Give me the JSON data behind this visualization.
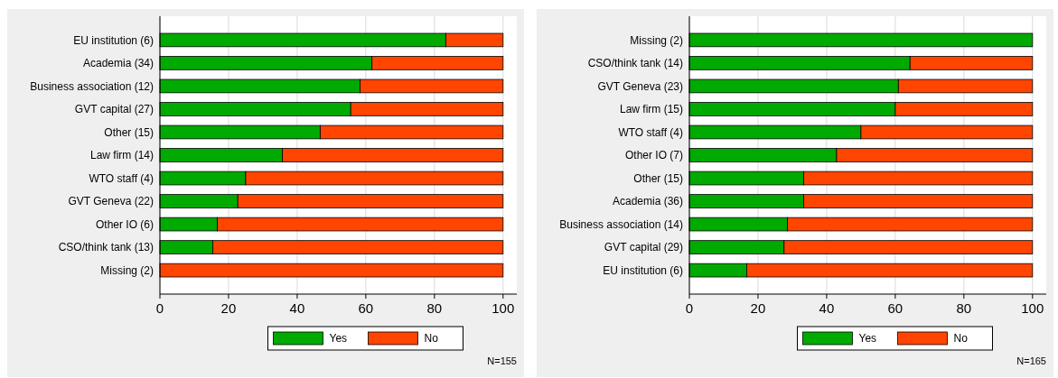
{
  "chart_data": [
    {
      "type": "bar",
      "orientation": "horizontal",
      "stacked": true,
      "categories": [
        "EU institution (6)",
        "Academia (34)",
        "Business  association (12)",
        "GVT capital (27)",
        "Other (15)",
        "Law firm (14)",
        "WTO staff (4)",
        "GVT Geneva (22)",
        "Other IO (6)",
        "CSO/think tank (13)",
        "Missing (2)"
      ],
      "series": [
        {
          "name": "Yes",
          "color": "#00aa00",
          "values": [
            83.3,
            61.8,
            58.3,
            55.6,
            46.7,
            35.7,
            25,
            22.7,
            16.7,
            15.4,
            0
          ]
        },
        {
          "name": "No",
          "color": "#ff4500",
          "values": [
            16.7,
            38.2,
            41.7,
            44.4,
            53.3,
            64.3,
            75,
            77.3,
            83.3,
            84.6,
            100
          ]
        }
      ],
      "xlim": [
        0,
        104
      ],
      "xticks": [
        0,
        20,
        40,
        60,
        80,
        100
      ],
      "grid": "x",
      "legend": "bottom",
      "annotations": [
        "N=155"
      ]
    },
    {
      "type": "bar",
      "orientation": "horizontal",
      "stacked": true,
      "categories": [
        "Missing (2)",
        "CSO/think tank (14)",
        "GVT Geneva (23)",
        "Law firm (15)",
        "WTO staff (4)",
        "Other IO (7)",
        "Other (15)",
        "Academia (36)",
        "Business  association (14)",
        "GVT capital (29)",
        "EU institution (6)"
      ],
      "series": [
        {
          "name": "Yes",
          "color": "#00aa00",
          "values": [
            100,
            64.3,
            60.9,
            60,
            50,
            42.9,
            33.3,
            33.3,
            28.6,
            27.6,
            16.7
          ]
        },
        {
          "name": "No",
          "color": "#ff4500",
          "values": [
            0,
            35.7,
            39.1,
            40,
            50,
            57.1,
            66.7,
            66.7,
            71.4,
            72.4,
            83.3
          ]
        }
      ],
      "xlim": [
        0,
        104
      ],
      "xticks": [
        0,
        20,
        40,
        60,
        80,
        100
      ],
      "grid": "x",
      "legend": "bottom",
      "annotations": [
        "N=165"
      ]
    }
  ]
}
